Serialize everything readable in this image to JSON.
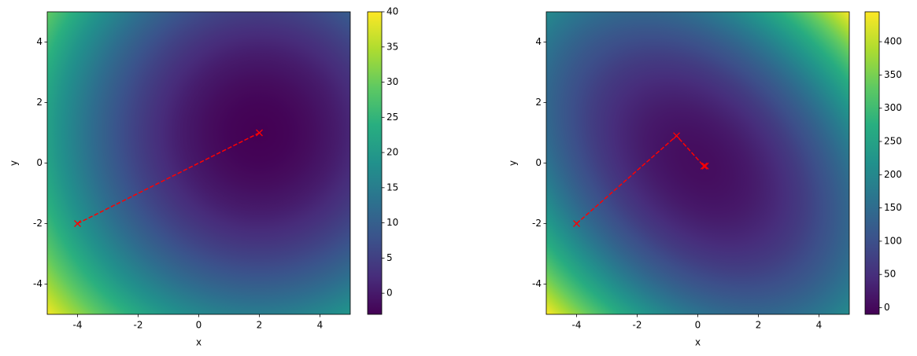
{
  "chart_data": [
    {
      "type": "contour",
      "xlabel": "x",
      "ylabel": "y",
      "xlim": [
        -5,
        5
      ],
      "ylim": [
        -5,
        5
      ],
      "xticks": [
        -4,
        -2,
        0,
        2,
        4
      ],
      "yticks": [
        -4,
        -2,
        0,
        2,
        4
      ],
      "x": [
        -4,
        2
      ],
      "values": [
        -2,
        1
      ],
      "color": "#ff0000",
      "colormap": "viridis",
      "clim": [
        -3,
        40
      ],
      "cticks": [
        0,
        5,
        10,
        15,
        20,
        25,
        30,
        35,
        40
      ]
    },
    {
      "type": "contour",
      "xlabel": "x",
      "ylabel": "y",
      "xlim": [
        -5,
        5
      ],
      "ylim": [
        -5,
        5
      ],
      "xticks": [
        -4,
        -2,
        0,
        2,
        4
      ],
      "yticks": [
        -4,
        -2,
        0,
        2,
        4
      ],
      "x": [
        -4,
        -0.7,
        0.2,
        0.25
      ],
      "values": [
        -2,
        0.9,
        -0.1,
        -0.1
      ],
      "color": "#ff0000",
      "colormap": "viridis",
      "clim": [
        -10,
        445
      ],
      "cticks": [
        0,
        50,
        100,
        150,
        200,
        250,
        300,
        350,
        400
      ]
    }
  ]
}
